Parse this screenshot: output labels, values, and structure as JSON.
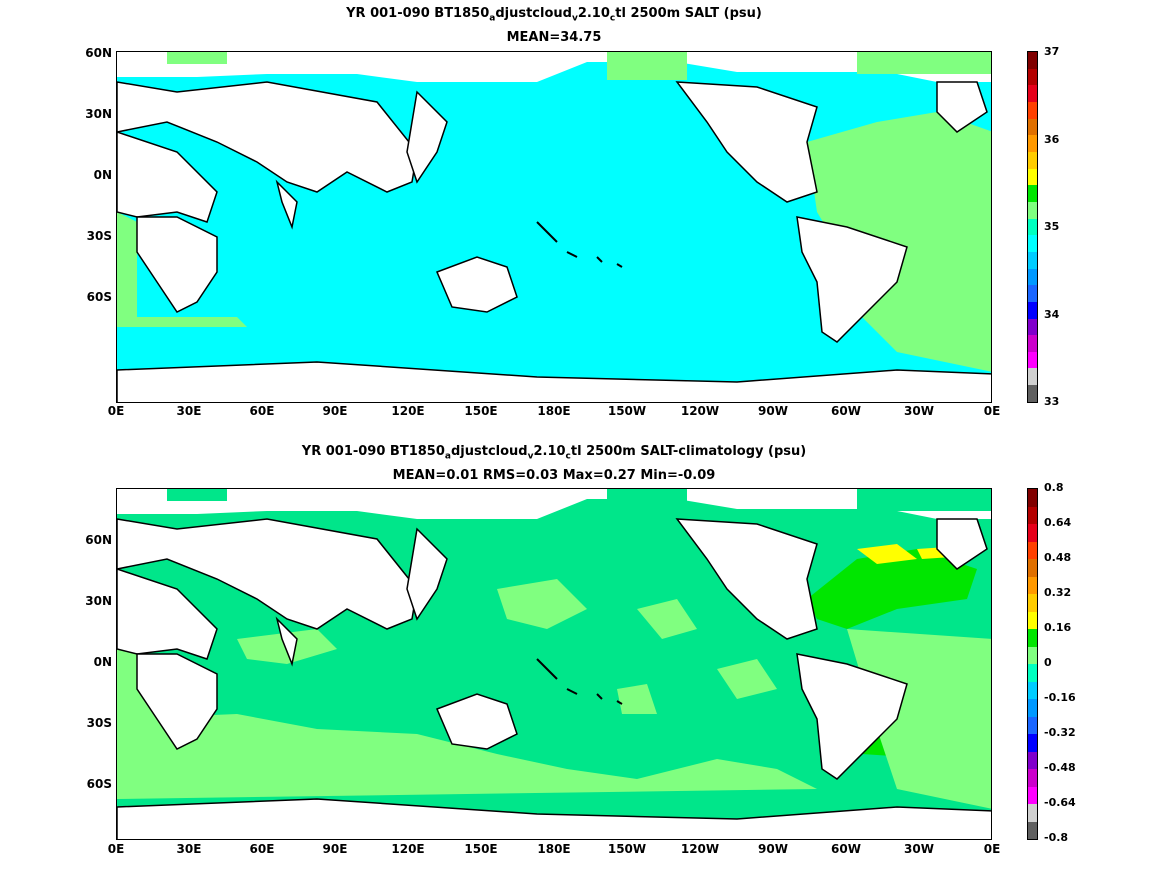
{
  "panel_top": {
    "title_prefix": "YR 001-090 BT1850",
    "title_sub1": "a",
    "title_mid1": "djustcloud",
    "title_sub2": "v",
    "title_mid2": "2.10",
    "title_sub3": "c",
    "title_suffix": "tl 2500m SALT (psu)",
    "stats": "MEAN=34.75",
    "field": "SALT (psu)",
    "colorbar_labels": [
      "37",
      "36",
      "35",
      "34",
      "33"
    ],
    "colorbar_colors": [
      "#800000",
      "#b30000",
      "#e6001a",
      "#ff4000",
      "#e07000",
      "#ff9900",
      "#ffcc00",
      "#ffff00",
      "#00e600",
      "#80ff80",
      "#00ffc0",
      "#00ffff",
      "#00ccff",
      "#0099ff",
      "#1a66ff",
      "#0000ff",
      "#8000cc",
      "#cc00cc",
      "#ff00ff",
      "#d0d0d0",
      "#606060"
    ],
    "ocean_color": "#00ffff",
    "regions": [
      {
        "name": "atlantic-band",
        "color": "#80ff80"
      },
      {
        "name": "southern-ocean-band",
        "color": "#00ffc0"
      }
    ]
  },
  "panel_bottom": {
    "title_prefix": "YR 001-090 BT1850",
    "title_sub1": "a",
    "title_mid1": "djustcloud",
    "title_sub2": "v",
    "title_mid2": "2.10",
    "title_sub3": "c",
    "title_suffix": "tl 2500m SALT-climatology (psu)",
    "stats": "MEAN=0.01   RMS=0.03   Max=0.27   Min=-0.09",
    "colorbar_labels": [
      "0.8",
      "0.64",
      "0.48",
      "0.32",
      "0.16",
      "0",
      "-0.16",
      "-0.32",
      "-0.48",
      "-0.64",
      "-0.8"
    ],
    "colorbar_colors": [
      "#800000",
      "#b30000",
      "#e6001a",
      "#ff4000",
      "#e07000",
      "#ff9900",
      "#ffcc00",
      "#ffff00",
      "#00e600",
      "#80ff80",
      "#00ffc0",
      "#00ccff",
      "#0099ff",
      "#1a66ff",
      "#0000ff",
      "#8000cc",
      "#cc00cc",
      "#ff00ff",
      "#d0d0d0",
      "#606060"
    ],
    "ocean_color": "#00e68a",
    "regions": [
      {
        "name": "southern-ocean-positive",
        "color": "#80ff80"
      },
      {
        "name": "north-atlantic-positive",
        "color": "#00e600"
      },
      {
        "name": "labrador-sea-high",
        "color": "#ffff00"
      }
    ]
  },
  "axes": {
    "x_ticks": [
      "0E",
      "30E",
      "60E",
      "90E",
      "120E",
      "150E",
      "180E",
      "150W",
      "120W",
      "90W",
      "60W",
      "30W",
      "0E"
    ],
    "y_ticks": [
      "60N",
      "30N",
      "0N",
      "30S",
      "60S"
    ]
  }
}
